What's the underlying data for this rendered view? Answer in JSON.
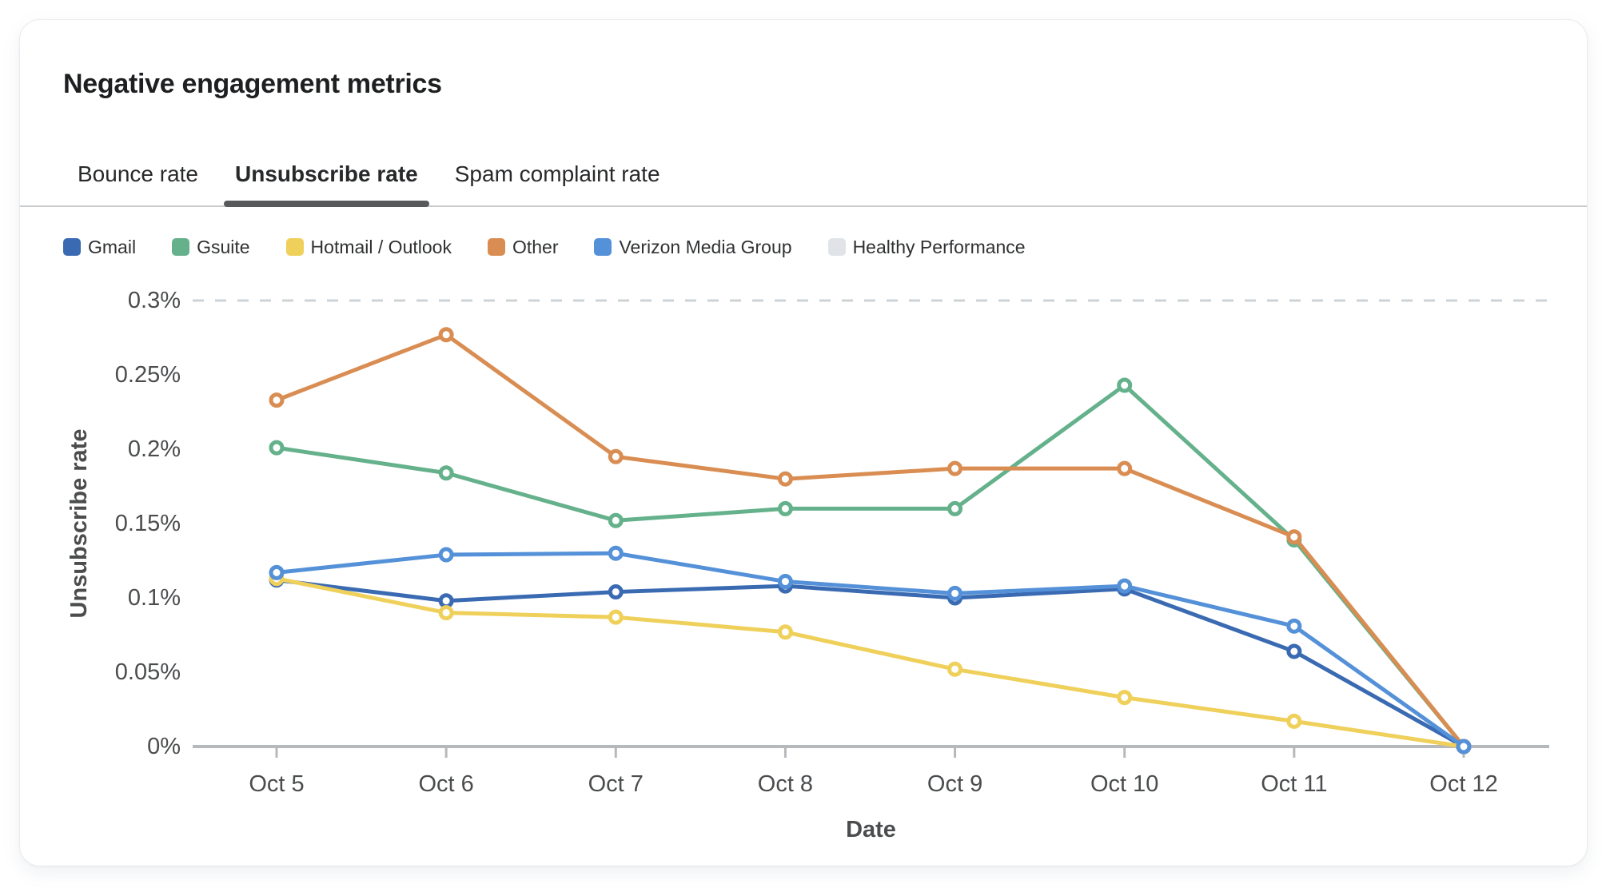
{
  "card": {
    "title": "Negative engagement metrics"
  },
  "tabs": [
    {
      "label": "Bounce rate",
      "active": false
    },
    {
      "label": "Unsubscribe rate",
      "active": true
    },
    {
      "label": "Spam complaint rate",
      "active": false
    }
  ],
  "legend": [
    {
      "label": "Gmail",
      "color": "#3a6ab2"
    },
    {
      "label": "Gsuite",
      "color": "#64b18b"
    },
    {
      "label": "Hotmail / Outlook",
      "color": "#efd05a"
    },
    {
      "label": "Other",
      "color": "#d98d52"
    },
    {
      "label": "Verizon Media Group",
      "color": "#5591d8"
    },
    {
      "label": "Healthy Performance",
      "color": "#e0e4e8"
    }
  ],
  "chart_data": {
    "type": "line",
    "title": "",
    "xlabel": "Date",
    "ylabel": "Unsubscribe rate",
    "unit": "%",
    "categories": [
      "Oct 5",
      "Oct 6",
      "Oct 7",
      "Oct 8",
      "Oct 9",
      "Oct 10",
      "Oct 11",
      "Oct 12"
    ],
    "y_ticks": [
      "0%",
      "0.05%",
      "0.1%",
      "0.15%",
      "0.2%",
      "0.25%",
      "0.3%"
    ],
    "y_tick_values": [
      0,
      0.05,
      0.1,
      0.15,
      0.2,
      0.25,
      0.3
    ],
    "ylim": [
      0,
      0.3
    ],
    "grid": "off",
    "legend_position": "top",
    "series": [
      {
        "name": "Gmail",
        "color": "#3a6ab2",
        "values": [
          0.112,
          0.098,
          0.104,
          0.108,
          0.1,
          0.106,
          0.064,
          0
        ]
      },
      {
        "name": "Gsuite",
        "color": "#64b18b",
        "values": [
          0.201,
          0.184,
          0.152,
          0.16,
          0.16,
          0.243,
          0.139,
          0
        ]
      },
      {
        "name": "Hotmail / Outlook",
        "color": "#efd05a",
        "values": [
          0.113,
          0.09,
          0.087,
          0.077,
          0.052,
          0.033,
          0.017,
          0
        ]
      },
      {
        "name": "Other",
        "color": "#d98d52",
        "values": [
          0.233,
          0.277,
          0.195,
          0.18,
          0.187,
          0.187,
          0.141,
          0
        ]
      },
      {
        "name": "Verizon Media Group",
        "color": "#5591d8",
        "values": [
          0.117,
          0.129,
          0.13,
          0.111,
          0.103,
          0.108,
          0.081,
          0
        ]
      }
    ],
    "threshold": {
      "name": "Healthy Performance",
      "value": 0.3,
      "line_color": "#ced3d7",
      "style": "dashed"
    }
  }
}
